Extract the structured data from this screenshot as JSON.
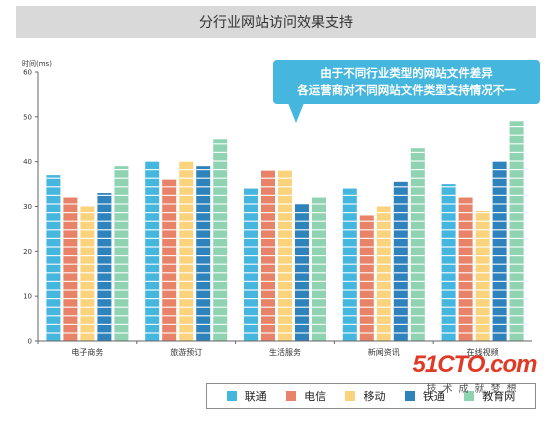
{
  "title": "分行业网站访问效果支持",
  "callout": {
    "line1": "由于不同行业类型的网站文件差异",
    "line2": "各运营商对不同网站文件类型支持情况不一"
  },
  "watermark": {
    "logo": "51CTO.com",
    "sub": "技术成就梦想"
  },
  "chart_data": {
    "type": "bar",
    "ylabel": "时间(ms)",
    "ylim": [
      0,
      60
    ],
    "yticks": [
      0,
      10,
      20,
      30,
      40,
      50,
      60
    ],
    "grid": false,
    "legend_position": "bottom-right",
    "categories": [
      "电子商务",
      "旅游预订",
      "生活服务",
      "新闻资讯",
      "在线视频"
    ],
    "series": [
      {
        "name": "联通",
        "color": "#45b6de",
        "values": [
          37,
          40,
          34,
          34,
          35
        ]
      },
      {
        "name": "电信",
        "color": "#e8836a",
        "values": [
          32,
          36,
          38,
          28,
          32
        ]
      },
      {
        "name": "移动",
        "color": "#fbd37d",
        "values": [
          30,
          40,
          38,
          30,
          29
        ]
      },
      {
        "name": "铁通",
        "color": "#2e83bd",
        "values": [
          33,
          39,
          30.5,
          35.5,
          40
        ]
      },
      {
        "name": "教育网",
        "color": "#8fd3b3",
        "values": [
          39,
          45,
          32,
          43,
          49
        ]
      }
    ]
  }
}
